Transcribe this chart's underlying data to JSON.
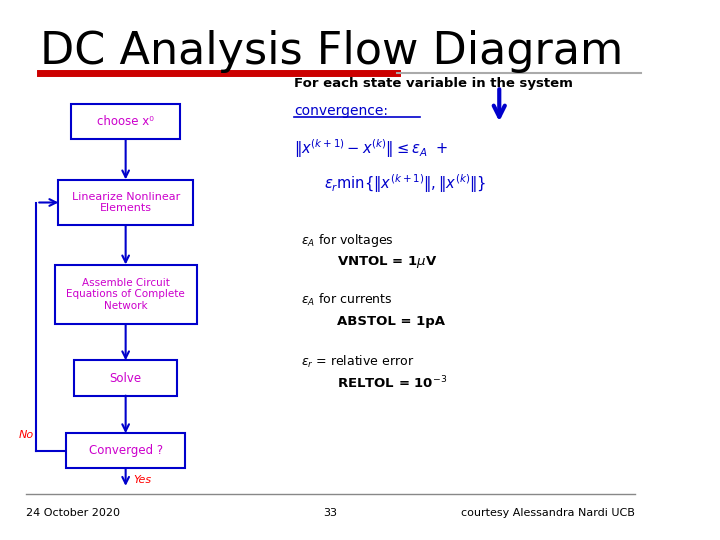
{
  "title": "DC Analysis Flow Diagram",
  "title_fontsize": 32,
  "title_color": "#000000",
  "bg_color": "#ffffff",
  "red_bar_color": "#cc0000",
  "blue_color": "#0000cc",
  "magenta_color": "#cc00cc",
  "footer_date": "24 October 2020",
  "footer_page": "33",
  "footer_credit": "courtesy Alessandra Nardi UCB",
  "header_text": "For each state variable in the system",
  "convergence_text": "convergence:"
}
